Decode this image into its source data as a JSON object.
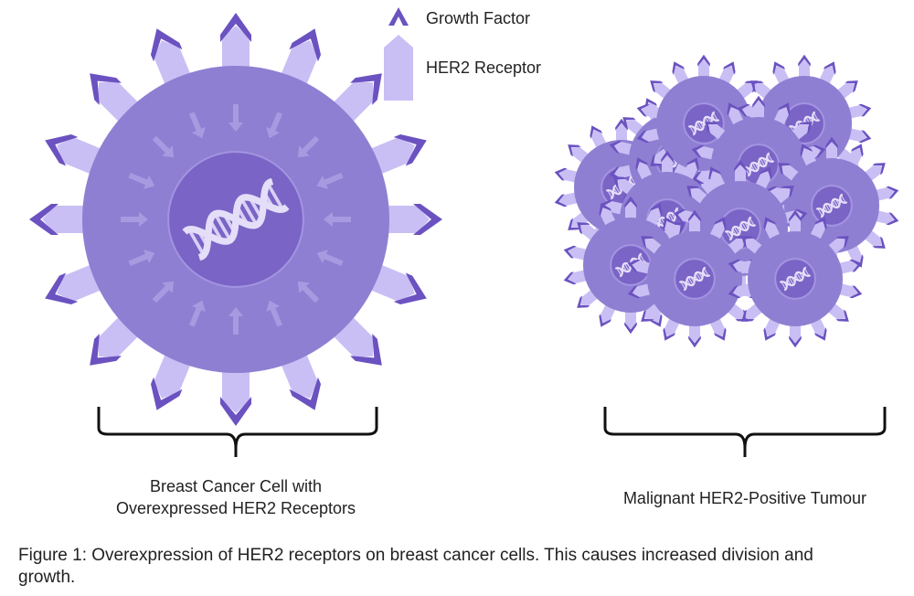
{
  "legend": {
    "items": [
      {
        "label": "Growth Factor"
      },
      {
        "label": "HER2 Receptor"
      }
    ]
  },
  "cell": {
    "label": [
      "Breast Cancer Cell with",
      "Overexpressed HER2 Receptors"
    ]
  },
  "tumour": {
    "label": "Malignant HER2-Positive Tumour"
  },
  "caption": "Figure 1: Overexpression of HER2 receptors on breast cancer cells. This causes increased division and growth."
}
